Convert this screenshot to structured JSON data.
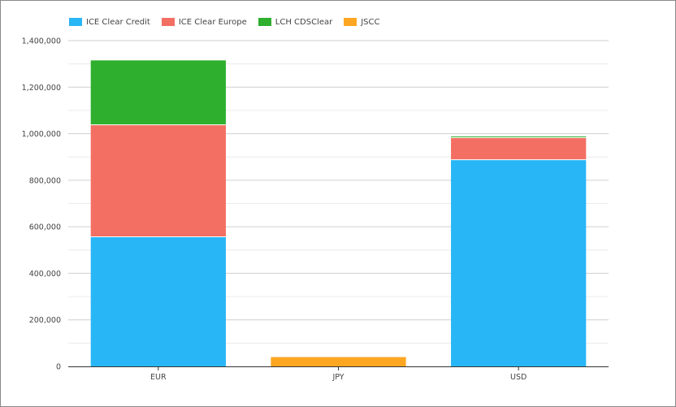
{
  "chart_data": {
    "type": "bar",
    "stacked": true,
    "categories": [
      "EUR",
      "JPY",
      "USD"
    ],
    "series": [
      {
        "name": "ICE Clear Credit",
        "color": "#29b6f6",
        "values": [
          557000,
          0,
          888000
        ]
      },
      {
        "name": "ICE Clear Europe",
        "color": "#f36f63",
        "values": [
          481000,
          0,
          95000
        ]
      },
      {
        "name": "LCH CDSClear",
        "color": "#2eaf2e",
        "values": [
          277000,
          0,
          5000
        ]
      },
      {
        "name": "JSCC",
        "color": "#fca622",
        "values": [
          0,
          40000,
          0
        ]
      }
    ],
    "yticks": [
      "0",
      "200,000",
      "400,000",
      "600,000",
      "800,000",
      "1,000,000",
      "1,200,000",
      "1,400,000"
    ],
    "ylim": [
      0,
      1400000
    ],
    "grid": true,
    "legend_position": "top-left",
    "title": "",
    "xlabel": "",
    "ylabel": ""
  }
}
